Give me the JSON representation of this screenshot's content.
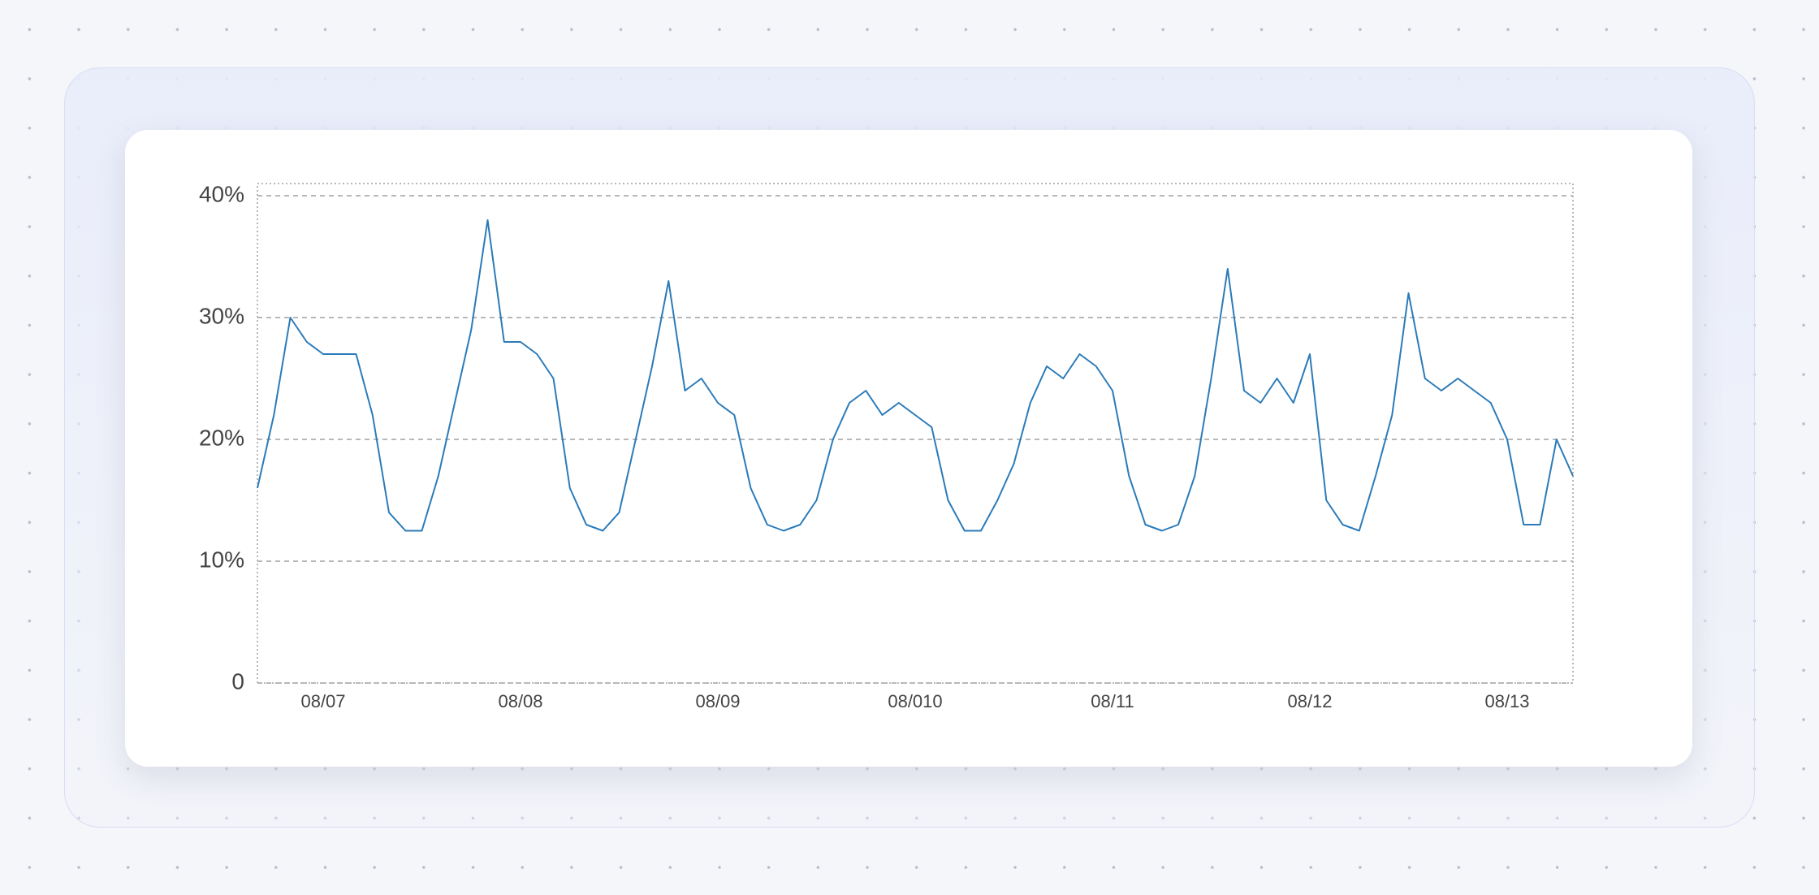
{
  "chart_data": {
    "type": "line",
    "categories": [
      null,
      null,
      null,
      null,
      "08/07",
      null,
      null,
      null,
      null,
      null,
      null,
      null,
      null,
      null,
      null,
      null,
      "08/08",
      null,
      null,
      null,
      null,
      null,
      null,
      null,
      null,
      null,
      null,
      null,
      "08/09",
      null,
      null,
      null,
      null,
      null,
      null,
      null,
      null,
      null,
      null,
      null,
      "08/010",
      null,
      null,
      null,
      null,
      null,
      null,
      null,
      null,
      null,
      null,
      null,
      "08/11",
      null,
      null,
      null,
      null,
      null,
      null,
      null,
      null,
      null,
      null,
      null,
      "08/12",
      null,
      null,
      null,
      null,
      null,
      null,
      null,
      null,
      null,
      null,
      null,
      "08/13",
      null,
      null,
      null,
      null
    ],
    "series": [
      {
        "color": "#2b7bb9",
        "values": [
          16,
          22,
          30,
          28,
          27,
          27,
          27,
          22,
          14,
          12.5,
          12.5,
          17,
          23,
          29,
          38,
          28,
          28,
          27,
          25,
          16,
          13,
          12.5,
          14,
          20,
          26,
          33,
          24,
          25,
          23,
          22,
          16,
          13,
          12.5,
          13,
          15,
          20,
          23,
          24,
          22,
          23,
          22,
          21,
          15,
          12.5,
          12.5,
          15,
          18,
          23,
          26,
          25,
          27,
          26,
          24,
          17,
          13,
          12.5,
          13,
          17,
          25,
          34,
          24,
          23,
          25,
          23,
          27,
          15,
          13,
          12.5,
          17,
          22,
          32,
          25,
          24,
          25,
          24,
          23,
          20,
          13,
          13,
          20,
          17
        ]
      }
    ],
    "ylim": [
      0,
      41
    ],
    "yticks": [
      0,
      {
        "value": 10,
        "label": "10%"
      },
      {
        "value": 20,
        "label": "20%"
      },
      {
        "value": 30,
        "label": "30%"
      },
      {
        "value": 40,
        "label": "40%"
      }
    ],
    "grid": true
  }
}
